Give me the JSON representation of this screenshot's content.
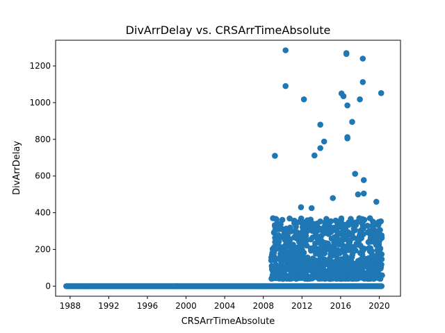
{
  "chart_data": {
    "type": "scatter",
    "title": "DivArrDelay vs. CRSArrTimeAbsolute",
    "xlabel": "CRSArrTimeAbsolute",
    "ylabel": "DivArrDelay",
    "xlim": [
      1986.5,
      2022.2
    ],
    "ylim": [
      -55,
      1340
    ],
    "x_ticks": [
      1988,
      1992,
      1996,
      2000,
      2004,
      2008,
      2012,
      2016,
      2020
    ],
    "y_ticks": [
      0,
      200,
      400,
      600,
      800,
      1000,
      1200
    ],
    "grid": false,
    "marker_color": "#1f77b4",
    "zero_band": {
      "x_start": 1987.6,
      "x_end": 2020.3,
      "value": 0
    },
    "dense_region": {
      "x_start": 2008.8,
      "x_end": 2020.3,
      "y_min": 40,
      "y_max": 500
    },
    "outliers": [
      {
        "x": 2009.2,
        "y": 710
      },
      {
        "x": 2010.3,
        "y": 1285
      },
      {
        "x": 2010.3,
        "y": 1090
      },
      {
        "x": 2012.2,
        "y": 1018
      },
      {
        "x": 2013.3,
        "y": 712
      },
      {
        "x": 2013.9,
        "y": 880
      },
      {
        "x": 2013.9,
        "y": 752
      },
      {
        "x": 2014.3,
        "y": 788
      },
      {
        "x": 2016.1,
        "y": 1050
      },
      {
        "x": 2016.3,
        "y": 1035
      },
      {
        "x": 2016.6,
        "y": 1270
      },
      {
        "x": 2016.6,
        "y": 1265
      },
      {
        "x": 2016.7,
        "y": 985
      },
      {
        "x": 2016.7,
        "y": 812
      },
      {
        "x": 2016.7,
        "y": 805
      },
      {
        "x": 2017.2,
        "y": 895
      },
      {
        "x": 2017.5,
        "y": 612
      },
      {
        "x": 2018.0,
        "y": 1018
      },
      {
        "x": 2018.3,
        "y": 1240
      },
      {
        "x": 2018.3,
        "y": 1112
      },
      {
        "x": 2018.4,
        "y": 578
      },
      {
        "x": 2020.2,
        "y": 1052
      },
      {
        "x": 2009.0,
        "y": 370
      },
      {
        "x": 2011.9,
        "y": 430
      },
      {
        "x": 2013.0,
        "y": 425
      },
      {
        "x": 2015.2,
        "y": 480
      },
      {
        "x": 2017.8,
        "y": 500
      },
      {
        "x": 2018.4,
        "y": 505
      },
      {
        "x": 2019.7,
        "y": 460
      },
      {
        "x": 2018.8,
        "y": 40
      }
    ]
  }
}
